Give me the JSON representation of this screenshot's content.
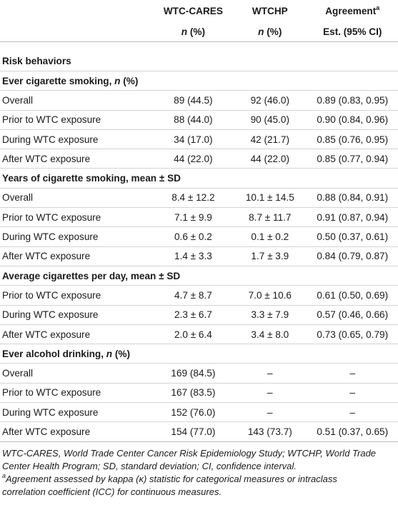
{
  "header": {
    "col1": "WTC-CARES",
    "col2": "WTCHP",
    "col3": "Agreement",
    "col3_sup": "a",
    "sub1_italic": "n",
    "sub1_rest": " (%)",
    "sub2_italic": "n",
    "sub2_rest": " (%)",
    "sub3": "Est. (95% CI)"
  },
  "risk_behaviors": "Risk behaviors",
  "sections": {
    "ever_smoking": {
      "title": "Ever cigarette smoking, ",
      "title_italic": "n",
      "title_tail": " (%)",
      "rows": [
        [
          "Overall",
          "89 (44.5)",
          "92 (46.0)",
          "0.89 (0.83, 0.95)"
        ],
        [
          "Prior to WTC exposure",
          "88 (44.0)",
          "90 (45.0)",
          "0.90 (0.84, 0.96)"
        ],
        [
          "During WTC exposure",
          "34 (17.0)",
          "42 (21.7)",
          "0.85 (0.76, 0.95)"
        ],
        [
          "After WTC exposure",
          "44 (22.0)",
          "44 (22.0)",
          "0.85 (0.77, 0.94)"
        ]
      ]
    },
    "years_smoking": {
      "title": "Years of cigarette smoking, mean ± SD",
      "rows": [
        [
          "Overall",
          "8.4 ± 12.2",
          "10.1 ± 14.5",
          "0.88 (0.84, 0.91)"
        ],
        [
          "Prior to WTC exposure",
          "7.1 ± 9.9",
          "8.7 ± 11.7",
          "0.91 (0.87, 0.94)"
        ],
        [
          "During WTC exposure",
          "0.6 ± 0.2",
          "0.1 ± 0.2",
          "0.50 (0.37, 0.61)"
        ],
        [
          "After WTC exposure",
          "1.4 ± 3.3",
          "1.7 ± 3.9",
          "0.84 (0.79, 0.87)"
        ]
      ]
    },
    "avg_cigs": {
      "title": "Average cigarettes per day, mean ± SD",
      "rows": [
        [
          "Prior to WTC exposure",
          "4.7 ± 8.7",
          "7.0 ± 10.6",
          "0.61 (0.50, 0.69)"
        ],
        [
          "During WTC exposure",
          "2.3 ± 6.7",
          "3.3 ± 7.9",
          "0.57 (0.46, 0.66)"
        ],
        [
          "After WTC exposure",
          "2.0 ± 6.4",
          "3.4 ± 8.0",
          "0.73 (0.65, 0.79)"
        ]
      ]
    },
    "alcohol": {
      "title": "Ever alcohol drinking, ",
      "title_italic": "n",
      "title_tail": " (%)",
      "rows": [
        [
          "Overall",
          "169 (84.5)",
          "–",
          "–"
        ],
        [
          "Prior to WTC exposure",
          "167 (83.5)",
          "–",
          "–"
        ],
        [
          "During WTC exposure",
          "152 (76.0)",
          "–",
          "–"
        ],
        [
          "After WTC exposure",
          "154 (77.0)",
          "143 (73.7)",
          "0.51 (0.37, 0.65)"
        ]
      ]
    }
  },
  "footnotes": {
    "abbrev_line1": "WTC-CARES, World Trade Center Cancer Risk Epidemiology Study; WTCHP, World Trade",
    "abbrev_line2": "Center Health Program; SD, standard deviation; CI, confidence interval.",
    "note_sup": "a",
    "note_line1": "Agreement assessed by kappa (κ) statistic for categorical measures or intraclass",
    "note_line2": "correlation coefficient (ICC) for continuous measures."
  }
}
